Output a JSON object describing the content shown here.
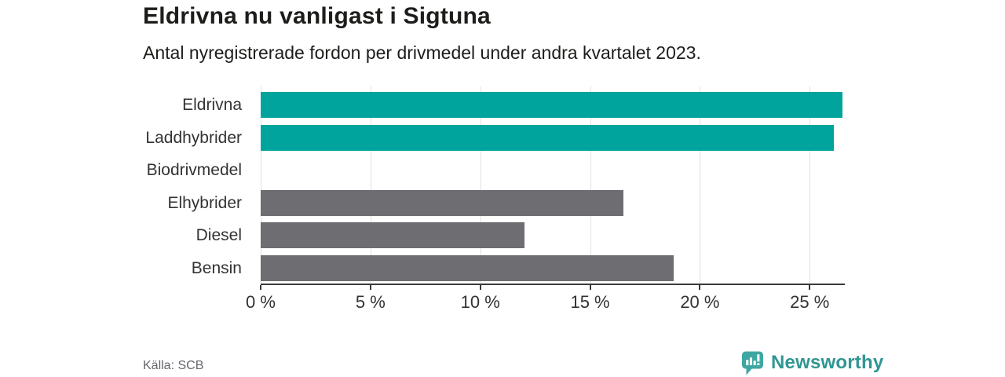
{
  "header": {
    "title": "Eldrivna nu vanligast i Sigtuna",
    "subtitle": "Antal nyregistrerade fordon per drivmedel under andra kvartalet 2023."
  },
  "footer": {
    "source": "Källa: SCB",
    "brand": "Newsworthy"
  },
  "colors": {
    "teal_bar": "#00a49c",
    "gray_bar": "#6d6d72",
    "gridline": "#e2e2e2",
    "axis": "#3a3a3a",
    "text_dark": "#1d1d1b",
    "text_label": "#333333",
    "source_text": "#65656d",
    "logo_teal": "#3fa7a2",
    "wordmark_teal": "#2f9692"
  },
  "chart_data": {
    "type": "bar",
    "orientation": "horizontal",
    "title": "Eldrivna nu vanligast i Sigtuna",
    "subtitle": "Antal nyregistrerade fordon per drivmedel under andra kvartalet 2023.",
    "categories": [
      "Eldrivna",
      "Laddhybrider",
      "Biodrivmedel",
      "Elhybrider",
      "Diesel",
      "Bensin"
    ],
    "values": [
      26.5,
      26.1,
      0,
      16.5,
      12,
      18.8
    ],
    "unit": "%",
    "bar_colors": [
      "#00a49c",
      "#00a49c",
      "#6d6d72",
      "#6d6d72",
      "#6d6d72",
      "#6d6d72"
    ],
    "xlabel": "",
    "ylabel": "",
    "xlim": [
      0,
      26.6
    ],
    "x_ticks": [
      0,
      5,
      10,
      15,
      20,
      25
    ],
    "x_tick_labels": [
      "0 %",
      "5 %",
      "10 %",
      "15 %",
      "20 %",
      "25 %"
    ],
    "grid": "vertical",
    "legend": "none",
    "source": "Källa: SCB"
  }
}
